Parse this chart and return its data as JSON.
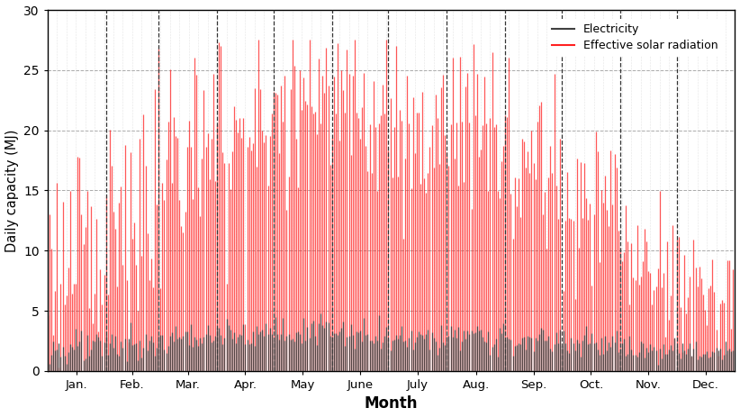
{
  "days_per_month": [
    31,
    28,
    31,
    30,
    31,
    30,
    31,
    31,
    30,
    31,
    30,
    31
  ],
  "month_labels": [
    "Jan.",
    "Feb.",
    "Mar.",
    "Apr.",
    "May",
    "June",
    "July",
    "Aug.",
    "Sep.",
    "Oct.",
    "Nov.",
    "Dec."
  ],
  "solar_color": "#FF2020",
  "solar_color_light": "#FF8080",
  "elec_color": "#404040",
  "ylabel": "Daily capacity (MJ)",
  "xlabel": "Month",
  "ylim": [
    0,
    30
  ],
  "yticks": [
    0,
    5,
    10,
    15,
    20,
    25,
    30
  ],
  "grid_color": "#aaaaaa",
  "vline_color": "#333333",
  "legend_electricity": "Electricity",
  "legend_solar": "Effective solar radiation",
  "background_color": "#ffffff",
  "figsize": [
    8.22,
    4.63
  ],
  "dpi": 100,
  "solar_monthly_mean": [
    9,
    13,
    17,
    20,
    22,
    22,
    20,
    20,
    17,
    13,
    9,
    6
  ],
  "solar_monthly_std": [
    4,
    5,
    5,
    5,
    4,
    4,
    4,
    4,
    4,
    4,
    3,
    3
  ],
  "elec_monthly_mean": [
    1.8,
    2.2,
    2.8,
    3.2,
    3.5,
    3.2,
    2.8,
    2.8,
    2.5,
    2.2,
    1.8,
    1.5
  ],
  "elec_monthly_std": [
    0.7,
    0.7,
    0.7,
    0.7,
    0.7,
    0.7,
    0.6,
    0.6,
    0.6,
    0.6,
    0.6,
    0.5
  ]
}
